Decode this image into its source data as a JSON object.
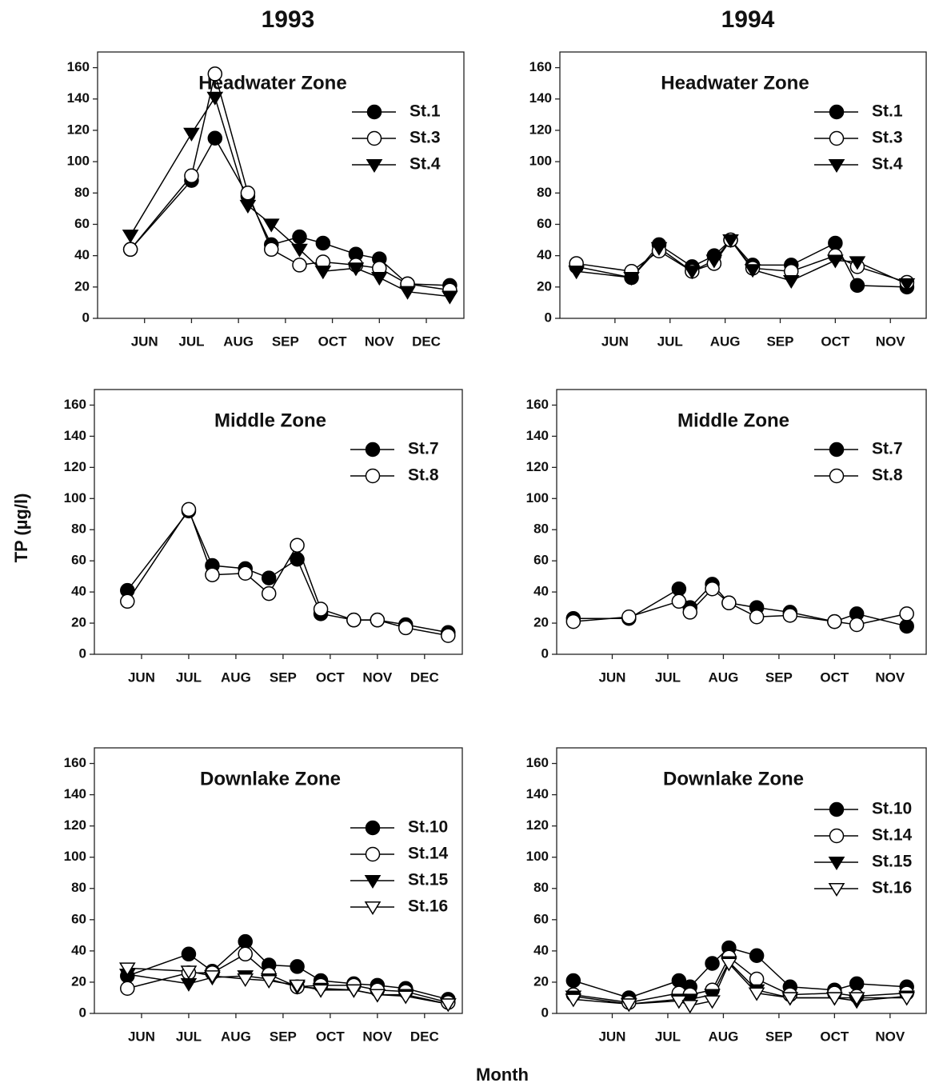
{
  "column_titles": [
    "1993",
    "1994"
  ],
  "y_label": "TP  (µg/l)",
  "x_label": "Month",
  "chart_data": [
    {
      "type": "line",
      "title": "Headwater Zone",
      "x": [
        5.7,
        7,
        7.5,
        8.2,
        8.7,
        9.3,
        9.8,
        10.5,
        11,
        11.6,
        12.5
      ],
      "xlim": [
        5,
        12.8
      ],
      "xticks": [
        {
          "value": 6,
          "label": "JUN"
        },
        {
          "value": 7,
          "label": "JUL"
        },
        {
          "value": 8,
          "label": "AUG"
        },
        {
          "value": 9,
          "label": "SEP"
        },
        {
          "value": 10,
          "label": "OCT"
        },
        {
          "value": 11,
          "label": "NOV"
        },
        {
          "value": 12,
          "label": "DEC"
        }
      ],
      "ylim": [
        0,
        170
      ],
      "yticks": [
        0,
        20,
        40,
        60,
        80,
        100,
        120,
        140,
        160
      ],
      "series": [
        {
          "name": "St.1",
          "color": "#000000",
          "marker": "filled-circle",
          "values": [
            44,
            88,
            115,
            78,
            47,
            52,
            48,
            41,
            38,
            22,
            21
          ]
        },
        {
          "name": "St.3",
          "color": "#000000",
          "marker": "open-circle",
          "values": [
            44,
            91,
            156,
            80,
            44,
            34,
            36,
            34,
            32,
            22,
            18
          ]
        },
        {
          "name": "St.4",
          "color": "#000000",
          "marker": "filled-triangle",
          "values": [
            53,
            118,
            141,
            72,
            60,
            44,
            30,
            32,
            26,
            17,
            14
          ]
        }
      ]
    },
    {
      "type": "line",
      "title": "Headwater Zone",
      "x": [
        5.3,
        6.3,
        6.8,
        7.4,
        7.8,
        8.1,
        8.5,
        9.2,
        10,
        10.4,
        11.3
      ],
      "xlim": [
        5,
        11.65
      ],
      "xticks": [
        {
          "value": 6,
          "label": "JUN"
        },
        {
          "value": 7,
          "label": "JUL"
        },
        {
          "value": 8,
          "label": "AUG"
        },
        {
          "value": 9,
          "label": "SEP"
        },
        {
          "value": 10,
          "label": "OCT"
        },
        {
          "value": 11,
          "label": "NOV"
        }
      ],
      "ylim": [
        0,
        170
      ],
      "yticks": [
        0,
        20,
        40,
        60,
        80,
        100,
        120,
        140,
        160
      ],
      "series": [
        {
          "name": "St.1",
          "color": "#000000",
          "marker": "filled-circle",
          "values": [
            33,
            26,
            47,
            33,
            40,
            50,
            34,
            34,
            48,
            21,
            20
          ]
        },
        {
          "name": "St.3",
          "color": "#000000",
          "marker": "open-circle",
          "values": [
            35,
            30,
            43,
            30,
            35,
            50,
            32,
            30,
            40,
            33,
            23
          ]
        },
        {
          "name": "St.4",
          "color": "#000000",
          "marker": "filled-triangle",
          "values": [
            30,
            26,
            45,
            30,
            37,
            50,
            31,
            24,
            37,
            36,
            22
          ]
        }
      ]
    },
    {
      "type": "line",
      "title": "Middle Zone",
      "x": [
        5.7,
        7,
        7.5,
        8.2,
        8.7,
        9.3,
        9.8,
        10.5,
        11,
        11.6,
        12.5
      ],
      "xlim": [
        5,
        12.8
      ],
      "xticks": [
        {
          "value": 6,
          "label": "JUN"
        },
        {
          "value": 7,
          "label": "JUL"
        },
        {
          "value": 8,
          "label": "AUG"
        },
        {
          "value": 9,
          "label": "SEP"
        },
        {
          "value": 10,
          "label": "OCT"
        },
        {
          "value": 11,
          "label": "NOV"
        },
        {
          "value": 12,
          "label": "DEC"
        }
      ],
      "ylim": [
        0,
        170
      ],
      "yticks": [
        0,
        20,
        40,
        60,
        80,
        100,
        120,
        140,
        160
      ],
      "series": [
        {
          "name": "St.7",
          "color": "#000000",
          "marker": "filled-circle",
          "values": [
            41,
            92,
            57,
            55,
            49,
            61,
            26,
            22,
            22,
            19,
            14
          ]
        },
        {
          "name": "St.8",
          "color": "#000000",
          "marker": "open-circle",
          "values": [
            34,
            93,
            51,
            52,
            39,
            70,
            29,
            22,
            22,
            17,
            12
          ]
        }
      ]
    },
    {
      "type": "line",
      "title": "Middle Zone",
      "x": [
        5.3,
        6.3,
        7.2,
        7.4,
        7.8,
        8.1,
        8.6,
        9.2,
        10,
        10.4,
        11.3
      ],
      "xlim": [
        5,
        11.65
      ],
      "xticks": [
        {
          "value": 6,
          "label": "JUN"
        },
        {
          "value": 7,
          "label": "JUL"
        },
        {
          "value": 8,
          "label": "AUG"
        },
        {
          "value": 9,
          "label": "SEP"
        },
        {
          "value": 10,
          "label": "OCT"
        },
        {
          "value": 11,
          "label": "NOV"
        }
      ],
      "ylim": [
        0,
        170
      ],
      "yticks": [
        0,
        20,
        40,
        60,
        80,
        100,
        120,
        140,
        160
      ],
      "series": [
        {
          "name": "St.7",
          "color": "#000000",
          "marker": "filled-circle",
          "values": [
            23,
            23,
            42,
            30,
            45,
            33,
            30,
            27,
            21,
            26,
            18
          ]
        },
        {
          "name": "St.8",
          "color": "#000000",
          "marker": "open-circle",
          "values": [
            21,
            24,
            34,
            27,
            42,
            33,
            24,
            25,
            21,
            19,
            26
          ]
        }
      ]
    },
    {
      "type": "line",
      "title": "Downlake Zone",
      "x": [
        5.7,
        7,
        7.5,
        8.2,
        8.7,
        9.3,
        9.8,
        10.5,
        11,
        11.6,
        12.5
      ],
      "xlim": [
        5,
        12.8
      ],
      "xticks": [
        {
          "value": 6,
          "label": "JUN"
        },
        {
          "value": 7,
          "label": "JUL"
        },
        {
          "value": 8,
          "label": "AUG"
        },
        {
          "value": 9,
          "label": "SEP"
        },
        {
          "value": 10,
          "label": "OCT"
        },
        {
          "value": 11,
          "label": "NOV"
        },
        {
          "value": 12,
          "label": "DEC"
        }
      ],
      "ylim": [
        0,
        170
      ],
      "yticks": [
        0,
        20,
        40,
        60,
        80,
        100,
        120,
        140,
        160
      ],
      "series": [
        {
          "name": "St.10",
          "color": "#000000",
          "marker": "filled-circle",
          "values": [
            24,
            38,
            27,
            46,
            31,
            30,
            21,
            19,
            18,
            16,
            9
          ]
        },
        {
          "name": "St.14",
          "color": "#000000",
          "marker": "open-circle",
          "values": [
            16,
            26,
            26,
            38,
            25,
            17,
            18,
            18,
            15,
            14,
            7
          ]
        },
        {
          "name": "St.15",
          "color": "#000000",
          "marker": "filled-triangle",
          "values": [
            25,
            19,
            23,
            24,
            22,
            17,
            16,
            15,
            12,
            12,
            6
          ]
        },
        {
          "name": "St.16",
          "color": "#000000",
          "marker": "open-triangle",
          "values": [
            29,
            27,
            24,
            22,
            21,
            18,
            15,
            15,
            12,
            11,
            6
          ]
        }
      ]
    },
    {
      "type": "line",
      "title": "Downlake Zone",
      "x": [
        5.3,
        6.3,
        7.2,
        7.4,
        7.8,
        8.1,
        8.6,
        9.2,
        10,
        10.4,
        11.3
      ],
      "xlim": [
        5,
        11.65
      ],
      "xticks": [
        {
          "value": 6,
          "label": "JUN"
        },
        {
          "value": 7,
          "label": "JUL"
        },
        {
          "value": 8,
          "label": "AUG"
        },
        {
          "value": 9,
          "label": "SEP"
        },
        {
          "value": 10,
          "label": "OCT"
        },
        {
          "value": 11,
          "label": "NOV"
        }
      ],
      "ylim": [
        0,
        170
      ],
      "yticks": [
        0,
        20,
        40,
        60,
        80,
        100,
        120,
        140,
        160
      ],
      "series": [
        {
          "name": "St.10",
          "color": "#000000",
          "marker": "filled-circle",
          "values": [
            21,
            10,
            21,
            17,
            32,
            42,
            37,
            17,
            15,
            19,
            17
          ]
        },
        {
          "name": "St.14",
          "color": "#000000",
          "marker": "open-circle",
          "values": [
            12,
            7,
            13,
            12,
            15,
            36,
            22,
            12,
            13,
            11,
            13
          ]
        },
        {
          "name": "St.15",
          "color": "#000000",
          "marker": "filled-triangle",
          "values": [
            11,
            6,
            9,
            9,
            12,
            33,
            15,
            10,
            10,
            8,
            11
          ]
        },
        {
          "name": "St.16",
          "color": "#000000",
          "marker": "open-triangle",
          "values": [
            9,
            6,
            8,
            5,
            8,
            32,
            13,
            10,
            10,
            10,
            10
          ]
        }
      ]
    }
  ]
}
